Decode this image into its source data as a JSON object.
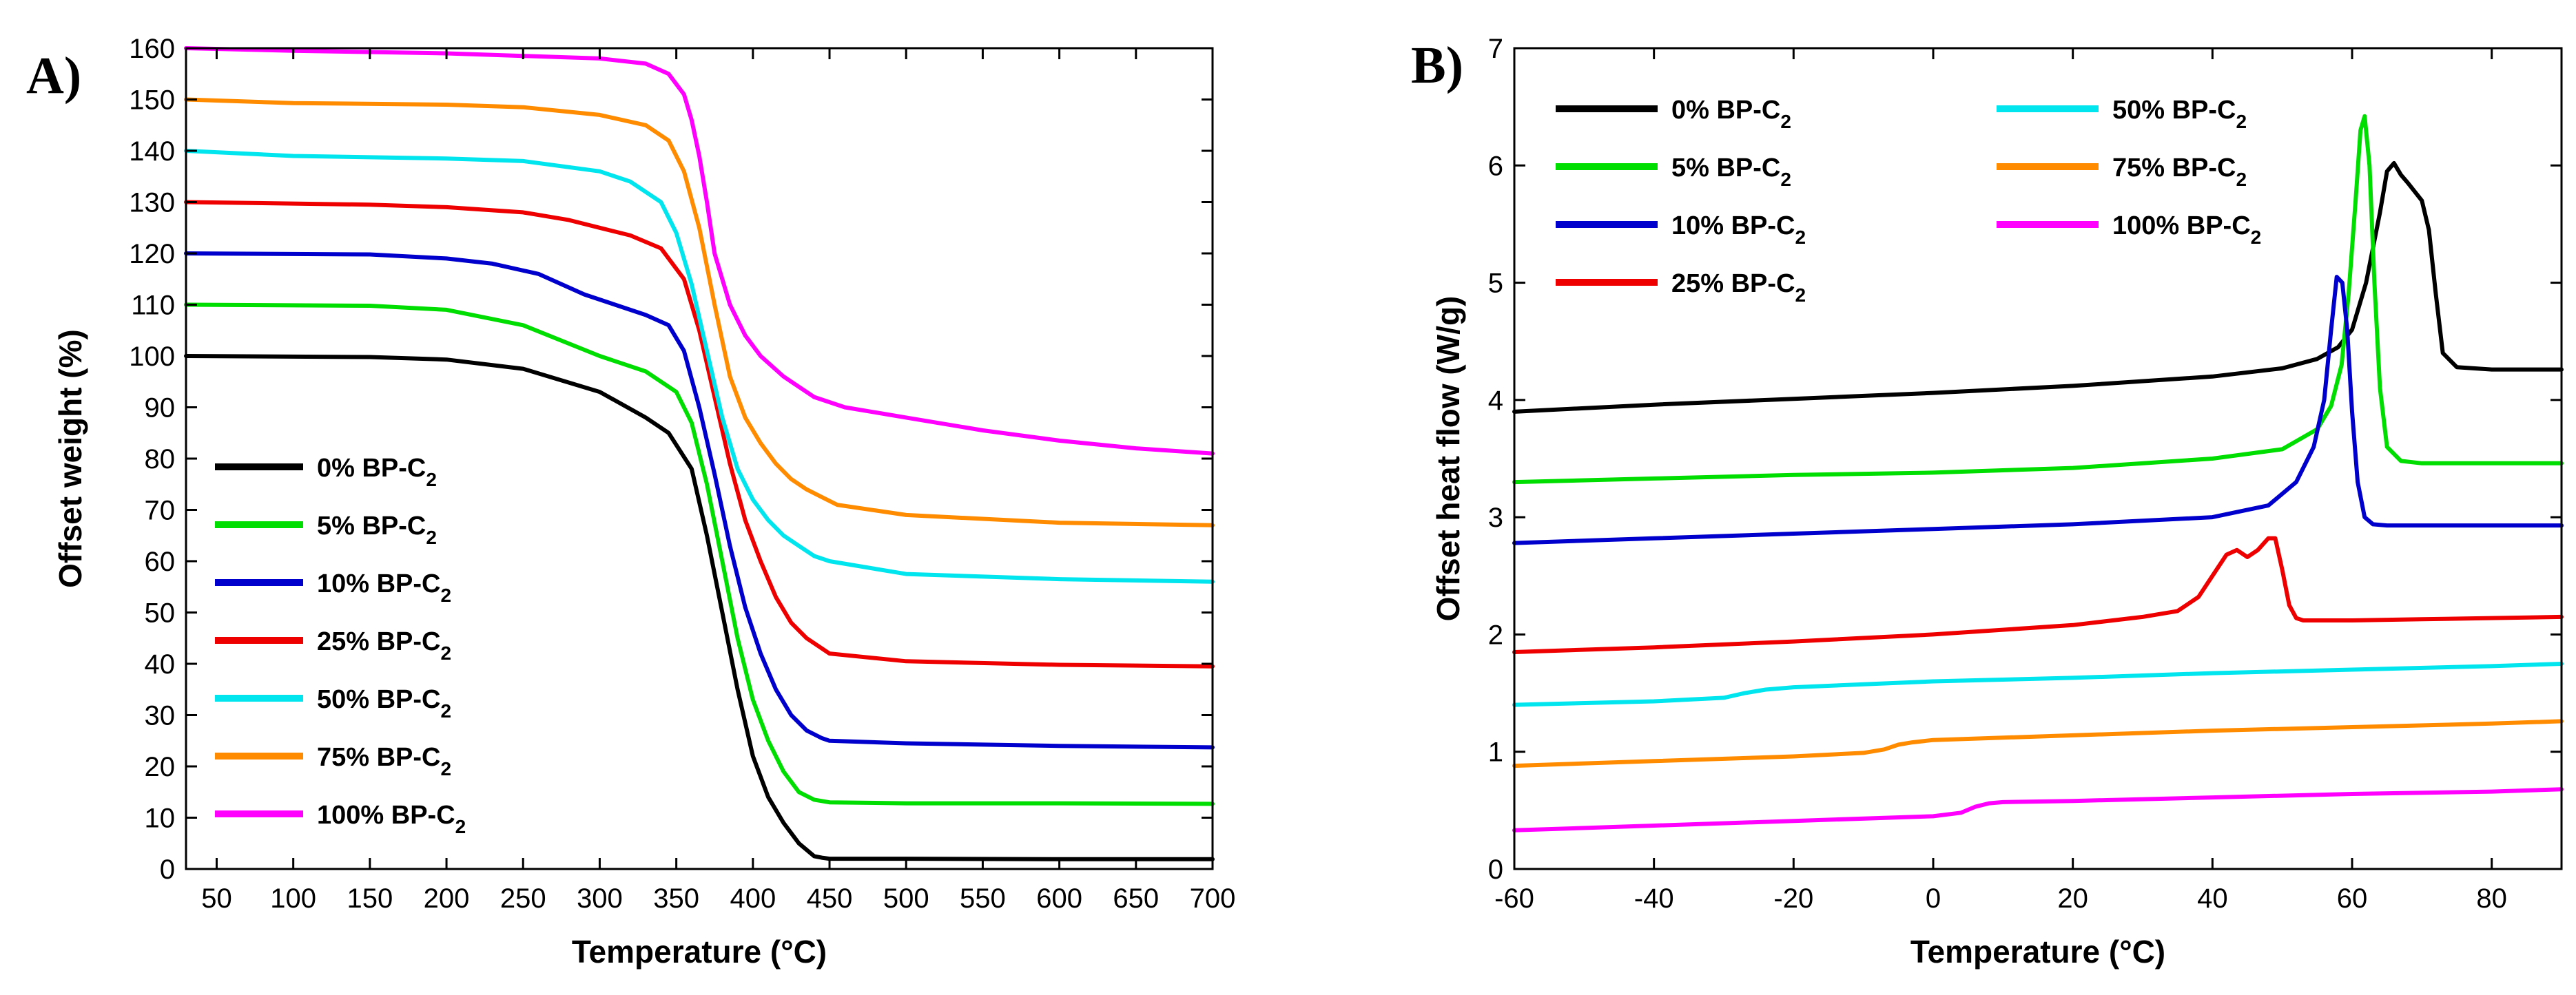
{
  "figure": {
    "panel_a_label": "A)",
    "panel_b_label": "B)"
  },
  "chart_data": [
    {
      "type": "line",
      "panel": "A)",
      "title": "",
      "xlabel": "Temperature (°C)",
      "ylabel": "Offset weight (%)",
      "xlim": [
        30,
        700
      ],
      "ylim": [
        0,
        160
      ],
      "xticks": [
        50,
        100,
        150,
        200,
        250,
        300,
        350,
        400,
        450,
        500,
        550,
        600,
        650,
        700
      ],
      "yticks": [
        0,
        10,
        20,
        30,
        40,
        50,
        60,
        70,
        80,
        90,
        100,
        110,
        120,
        130,
        140,
        150,
        160
      ],
      "grid": false,
      "legend_position": "lower-left",
      "series": [
        {
          "name": "0% BP-C2",
          "label_main": "0% BP-C",
          "label_sub": "2",
          "color": "#000000",
          "x": [
            30,
            150,
            200,
            250,
            300,
            330,
            345,
            360,
            370,
            380,
            390,
            400,
            410,
            420,
            430,
            440,
            445,
            450,
            500,
            600,
            700
          ],
          "y": [
            100,
            99.8,
            99.3,
            97.5,
            93,
            88,
            85,
            78,
            65,
            50,
            35,
            22,
            14,
            9,
            5,
            2.5,
            2.2,
            2,
            2,
            1.9,
            1.9
          ]
        },
        {
          "name": "5% BP-C2",
          "label_main": "5% BP-C",
          "label_sub": "2",
          "color": "#00dd00",
          "x": [
            30,
            150,
            200,
            250,
            300,
            330,
            350,
            360,
            370,
            380,
            390,
            400,
            410,
            420,
            430,
            440,
            450,
            500,
            600,
            700
          ],
          "y": [
            110,
            109.8,
            109,
            106,
            100,
            97,
            93,
            87,
            75,
            60,
            45,
            33,
            25,
            19,
            15,
            13.5,
            13,
            12.8,
            12.8,
            12.7
          ]
        },
        {
          "name": "10% BP-C2",
          "label_main": "10% BP-C",
          "label_sub": "2",
          "color": "#0000cc",
          "x": [
            30,
            150,
            200,
            230,
            260,
            290,
            310,
            330,
            345,
            355,
            365,
            375,
            385,
            395,
            405,
            415,
            425,
            435,
            445,
            450,
            500,
            600,
            700
          ],
          "y": [
            120,
            119.8,
            119,
            118,
            116,
            112,
            110,
            108,
            106,
            101,
            90,
            77,
            63,
            51,
            42,
            35,
            30,
            27,
            25.5,
            25,
            24.5,
            24,
            23.7
          ]
        },
        {
          "name": "25% BP-C2",
          "label_main": "25% BP-C",
          "label_sub": "2",
          "color": "#ee0000",
          "x": [
            30,
            150,
            200,
            250,
            280,
            300,
            320,
            340,
            355,
            365,
            375,
            385,
            395,
            405,
            415,
            425,
            435,
            450,
            500,
            600,
            700
          ],
          "y": [
            130,
            129.5,
            129,
            128,
            126.5,
            125,
            123.5,
            121,
            115,
            105,
            92,
            79,
            68,
            60,
            53,
            48,
            45,
            42,
            40.5,
            39.8,
            39.5
          ]
        },
        {
          "name": "50% BP-C2",
          "label_main": "50% BP-C",
          "label_sub": "2",
          "color": "#00e5ee",
          "x": [
            30,
            100,
            200,
            250,
            300,
            320,
            340,
            350,
            360,
            370,
            380,
            390,
            400,
            410,
            420,
            430,
            440,
            450,
            500,
            600,
            700
          ],
          "y": [
            140,
            139,
            138.5,
            138,
            136,
            134,
            130,
            124,
            114,
            101,
            88,
            78,
            72,
            68,
            65,
            63,
            61,
            60,
            57.5,
            56.5,
            56
          ]
        },
        {
          "name": "75% BP-C2",
          "label_main": "75% BP-C",
          "label_sub": "2",
          "color": "#ff8c00",
          "x": [
            30,
            100,
            200,
            250,
            300,
            330,
            345,
            355,
            365,
            375,
            385,
            395,
            405,
            415,
            425,
            435,
            445,
            455,
            500,
            600,
            700
          ],
          "y": [
            150,
            149.3,
            149,
            148.5,
            147,
            145,
            142,
            136,
            125,
            110,
            96,
            88,
            83,
            79,
            76,
            74,
            72.5,
            71,
            69,
            67.5,
            67
          ]
        },
        {
          "name": "100% BP-C2",
          "label_main": "100% BP-C",
          "label_sub": "2",
          "color": "#ff00ff",
          "x": [
            30,
            100,
            200,
            300,
            330,
            345,
            355,
            360,
            365,
            370,
            375,
            385,
            395,
            405,
            420,
            440,
            460,
            500,
            550,
            600,
            650,
            700
          ],
          "y": [
            160,
            159.5,
            159,
            158,
            157,
            155,
            151,
            146,
            139,
            130,
            120,
            110,
            104,
            100,
            96,
            92,
            90,
            88,
            85.5,
            83.5,
            82,
            81
          ]
        }
      ]
    },
    {
      "type": "line",
      "panel": "B)",
      "title": "",
      "xlabel": "Temperature (°C)",
      "ylabel": "Offset heat flow (W/g)",
      "xlim": [
        -60,
        90
      ],
      "ylim": [
        0,
        7
      ],
      "xticks": [
        -60,
        -40,
        -20,
        0,
        20,
        40,
        60,
        80
      ],
      "yticks": [
        0,
        1,
        2,
        3,
        4,
        5,
        6,
        7
      ],
      "grid": false,
      "legend_position": "top-left",
      "series": [
        {
          "name": "0% BP-C2",
          "label_main": "0% BP-C",
          "label_sub": "2",
          "color": "#000000",
          "x": [
            -60,
            -40,
            -20,
            0,
            20,
            40,
            50,
            55,
            58,
            60,
            62,
            64,
            65,
            66,
            67,
            68,
            70,
            71,
            72,
            73,
            75,
            80,
            90
          ],
          "y": [
            3.9,
            3.96,
            4.01,
            4.06,
            4.12,
            4.2,
            4.27,
            4.35,
            4.45,
            4.6,
            5.0,
            5.6,
            5.95,
            6.02,
            5.92,
            5.85,
            5.7,
            5.45,
            4.9,
            4.4,
            4.28,
            4.26,
            4.26
          ]
        },
        {
          "name": "5% BP-C2",
          "label_main": "5% BP-C",
          "label_sub": "2",
          "color": "#00dd00",
          "x": [
            -60,
            -40,
            -20,
            0,
            20,
            40,
            50,
            55,
            57,
            58.5,
            59.5,
            60.5,
            61.2,
            61.8,
            62.5,
            63.2,
            64,
            65,
            67,
            70,
            80,
            90
          ],
          "y": [
            3.3,
            3.33,
            3.36,
            3.38,
            3.42,
            3.5,
            3.58,
            3.75,
            3.95,
            4.3,
            4.9,
            5.7,
            6.3,
            6.42,
            6.0,
            5.0,
            4.1,
            3.6,
            3.48,
            3.46,
            3.46,
            3.46
          ]
        },
        {
          "name": "10% BP-C2",
          "label_main": "10% BP-C",
          "label_sub": "2",
          "color": "#0000cc",
          "x": [
            -60,
            -40,
            -20,
            0,
            20,
            40,
            48,
            52,
            54.5,
            56,
            57,
            57.8,
            58.6,
            59.3,
            60,
            60.8,
            61.8,
            63,
            65,
            70,
            80,
            90
          ],
          "y": [
            2.78,
            2.82,
            2.86,
            2.9,
            2.94,
            3.0,
            3.1,
            3.3,
            3.6,
            4.0,
            4.6,
            5.05,
            5.0,
            4.6,
            3.9,
            3.3,
            3.0,
            2.94,
            2.93,
            2.93,
            2.93,
            2.93
          ]
        },
        {
          "name": "25% BP-C2",
          "label_main": "25% BP-C",
          "label_sub": "2",
          "color": "#ee0000",
          "x": [
            -60,
            -40,
            -20,
            0,
            20,
            30,
            35,
            38,
            40,
            42,
            43.5,
            45,
            46.5,
            48,
            49,
            50,
            51,
            52,
            53,
            55,
            60,
            70,
            80,
            90
          ],
          "y": [
            1.85,
            1.89,
            1.94,
            2.0,
            2.08,
            2.15,
            2.2,
            2.32,
            2.5,
            2.68,
            2.72,
            2.66,
            2.72,
            2.82,
            2.82,
            2.55,
            2.25,
            2.14,
            2.12,
            2.12,
            2.12,
            2.13,
            2.14,
            2.15
          ]
        },
        {
          "name": "50% BP-C2",
          "label_main": "50% BP-C",
          "label_sub": "2",
          "color": "#00e5ee",
          "x": [
            -60,
            -40,
            -30,
            -27,
            -24,
            -20,
            0,
            20,
            40,
            60,
            80,
            90
          ],
          "y": [
            1.4,
            1.43,
            1.46,
            1.5,
            1.53,
            1.55,
            1.6,
            1.63,
            1.67,
            1.7,
            1.73,
            1.75
          ]
        },
        {
          "name": "75% BP-C2",
          "label_main": "75% BP-C",
          "label_sub": "2",
          "color": "#ff8c00",
          "x": [
            -60,
            -40,
            -20,
            -10,
            -7,
            -5,
            -3,
            0,
            20,
            40,
            60,
            80,
            90
          ],
          "y": [
            0.88,
            0.92,
            0.96,
            0.99,
            1.02,
            1.06,
            1.08,
            1.1,
            1.14,
            1.18,
            1.21,
            1.24,
            1.26
          ]
        },
        {
          "name": "100% BP-C2",
          "label_main": "100% BP-C",
          "label_sub": "2",
          "color": "#ff00ff",
          "x": [
            -60,
            -40,
            -20,
            0,
            4,
            6,
            8,
            10,
            20,
            40,
            60,
            80,
            90
          ],
          "y": [
            0.33,
            0.37,
            0.41,
            0.45,
            0.48,
            0.53,
            0.56,
            0.57,
            0.58,
            0.61,
            0.64,
            0.66,
            0.68
          ]
        }
      ]
    }
  ]
}
